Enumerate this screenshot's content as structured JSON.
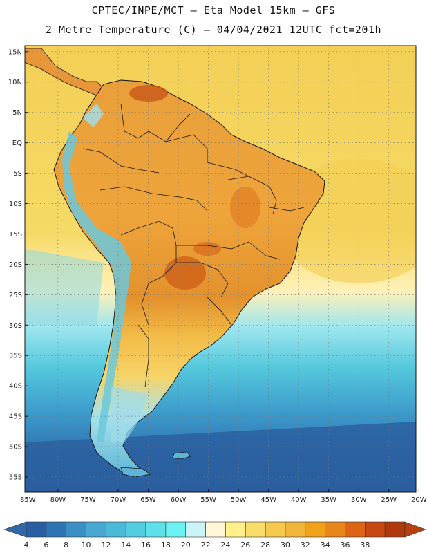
{
  "header": {
    "title": "CPTEC/INPE/MCT –  Eta Model 15km – GFS",
    "subtitle": "2 Metre Temperature (C) – 04/04/2021 12UTC fct=201h"
  },
  "map": {
    "lat_labels": [
      "15N",
      "10N",
      "5N",
      "EQ",
      "5S",
      "10S",
      "15S",
      "20S",
      "25S",
      "30S",
      "35S",
      "40S",
      "45S",
      "50S",
      "55S"
    ],
    "lon_labels": [
      "85W",
      "80W",
      "75W",
      "70W",
      "65W",
      "60W",
      "55W",
      "50W",
      "45W",
      "40W",
      "35W",
      "30W",
      "25W",
      "20W"
    ],
    "lat_values": [
      15,
      10,
      5,
      0,
      -5,
      -10,
      -15,
      -20,
      -25,
      -30,
      -35,
      -40,
      -45,
      -50,
      -55
    ],
    "lon_values": [
      -85,
      -80,
      -75,
      -70,
      -65,
      -60,
      -55,
      -50,
      -45,
      -40,
      -35,
      -30,
      -25,
      -20
    ],
    "extent": {
      "lon_min": -85.5,
      "lon_max": -20.5,
      "lat_min": -57.5,
      "lat_max": 16
    }
  },
  "colorbar": {
    "labels": [
      "4",
      "6",
      "8",
      "10",
      "12",
      "14",
      "16",
      "18",
      "20",
      "22",
      "24",
      "26",
      "28",
      "30",
      "32",
      "34",
      "36",
      "38"
    ],
    "colors": [
      "#2a5ea3",
      "#2f74b2",
      "#3b8fc4",
      "#48a8d2",
      "#4bbad8",
      "#52ccdf",
      "#5ee0e8",
      "#6cf2f2",
      "#c9f4f8",
      "#fff6d8",
      "#fff08c",
      "#fadc6a",
      "#f5c84f",
      "#efb63a",
      "#f0a21a",
      "#e8861a",
      "#dc6414",
      "#c84814",
      "#b03a0e"
    ],
    "color_low": "#2f6aa8",
    "color_high": "#b84010"
  },
  "colors": {
    "ocean_cold": "#2d6aa6",
    "ocean_mid": "#4bbad8",
    "ocean_warm": "#f6d560",
    "land_hot": "#e69a2e",
    "land_warm": "#f0b03c",
    "andes": "#6cc8dc",
    "border": "#111111",
    "grid": "#777777"
  }
}
